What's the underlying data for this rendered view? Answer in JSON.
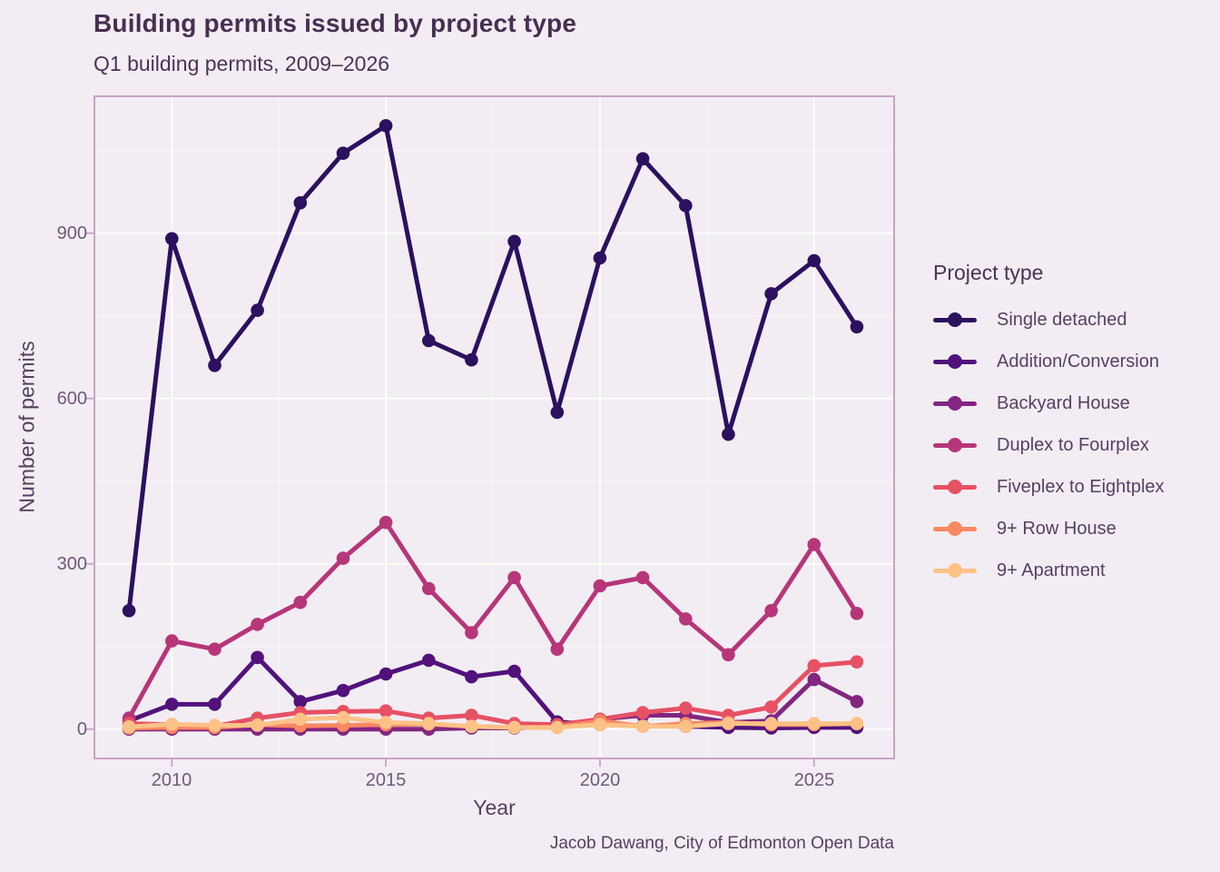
{
  "header": {
    "title": "Building permits issued by project type",
    "subtitle": "Q1 building permits, 2009–2026"
  },
  "caption": "Jacob Dawang, City of Edmonton Open Data",
  "axes": {
    "x_label": "Year",
    "y_label": "Number of permits",
    "x_ticks": [
      "2010",
      "2015",
      "2020",
      "2025"
    ],
    "y_ticks": [
      "0",
      "300",
      "600",
      "900"
    ]
  },
  "legend": {
    "title": "Project type",
    "items": [
      {
        "label": "Single detached",
        "color": "#2b115e"
      },
      {
        "label": "Addition/Conversion",
        "color": "#51127c"
      },
      {
        "label": "Backyard House",
        "color": "#822681"
      },
      {
        "label": "Duplex to Fourplex",
        "color": "#b63679"
      },
      {
        "label": "Fiveplex to Eightplex",
        "color": "#e65164"
      },
      {
        "label": "9+ Row House",
        "color": "#fb8861"
      },
      {
        "label": "9+ Apartment",
        "color": "#fec287"
      }
    ]
  },
  "chart_data": {
    "type": "line",
    "title": "Building permits issued by project type",
    "subtitle": "Q1 building permits, 2009–2026",
    "xlabel": "Year",
    "ylabel": "Number of permits",
    "caption": "Jacob Dawang, City of Edmonton Open Data",
    "x": [
      2009,
      2010,
      2011,
      2012,
      2013,
      2014,
      2015,
      2016,
      2017,
      2018,
      2019,
      2020,
      2021,
      2022,
      2023,
      2024,
      2025,
      2026
    ],
    "series": [
      {
        "name": "Single detached",
        "color": "#2b115e",
        "values": [
          215,
          890,
          660,
          760,
          955,
          1045,
          1095,
          705,
          670,
          885,
          575,
          855,
          1035,
          950,
          535,
          790,
          850,
          730
        ]
      },
      {
        "name": "Addition/Conversion",
        "color": "#51127c",
        "values": [
          15,
          45,
          45,
          130,
          50,
          70,
          100,
          125,
          95,
          105,
          13,
          8,
          6,
          5,
          3,
          2,
          3,
          3
        ]
      },
      {
        "name": "Backyard House",
        "color": "#822681",
        "values": [
          0,
          0,
          0,
          0,
          0,
          0,
          0,
          0,
          2,
          2,
          5,
          18,
          25,
          25,
          12,
          15,
          90,
          50
        ]
      },
      {
        "name": "Duplex to Fourplex",
        "color": "#b63679",
        "values": [
          20,
          160,
          145,
          190,
          230,
          310,
          375,
          255,
          175,
          275,
          145,
          260,
          275,
          200,
          135,
          215,
          335,
          210
        ]
      },
      {
        "name": "Fiveplex to Eightplex",
        "color": "#e65164",
        "values": [
          10,
          8,
          5,
          20,
          30,
          32,
          33,
          20,
          25,
          10,
          8,
          18,
          30,
          38,
          25,
          40,
          115,
          122
        ]
      },
      {
        "name": "9+ Row House",
        "color": "#fb8861",
        "values": [
          2,
          3,
          3,
          8,
          6,
          7,
          8,
          9,
          5,
          3,
          3,
          15,
          5,
          10,
          12,
          8,
          8,
          10
        ]
      },
      {
        "name": "9+ Apartment",
        "color": "#fec287",
        "values": [
          4,
          9,
          7,
          7,
          18,
          21,
          12,
          10,
          5,
          3,
          3,
          8,
          5,
          5,
          10,
          10,
          10,
          10
        ]
      }
    ],
    "x_tick_values": [
      2010,
      2015,
      2020,
      2025
    ],
    "y_tick_values": [
      0,
      300,
      600,
      900
    ],
    "x_minor_gridlines": [
      2012.5,
      2017.5,
      2022.5
    ],
    "y_minor_gridlines": [
      150,
      450,
      750,
      1050
    ],
    "xlim": [
      2008.2,
      2026.9
    ],
    "ylim": [
      -50,
      1148
    ],
    "grid": true,
    "legend_position": "right",
    "point_markers": true
  }
}
